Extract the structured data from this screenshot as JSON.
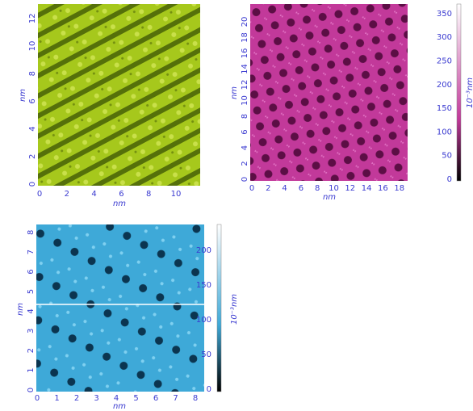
{
  "panels": [
    {
      "x_label": "nm",
      "y_label": "nm",
      "x_ticks": [
        "0",
        "2",
        "4",
        "6",
        "8",
        "10"
      ],
      "y_ticks": [
        "0",
        "2",
        "4",
        "6",
        "8",
        "10",
        "12"
      ]
    },
    {
      "x_label": "nm",
      "y_label": "nm",
      "x_ticks": [
        "0",
        "2",
        "4",
        "6",
        "8",
        "10",
        "12",
        "14",
        "16",
        "18"
      ],
      "y_ticks": [
        "0",
        "2",
        "4",
        "6",
        "8",
        "10",
        "12",
        "14",
        "16",
        "18",
        "20"
      ],
      "colorbar": {
        "label": "10⁻³nm",
        "ticks": [
          "0",
          "50",
          "100",
          "150",
          "200",
          "250",
          "300",
          "350"
        ]
      }
    },
    {
      "x_label": "nm",
      "y_label": "nm",
      "x_ticks": [
        "0",
        "1",
        "2",
        "3",
        "4",
        "5",
        "6",
        "7",
        "8"
      ],
      "y_ticks": [
        "0",
        "1",
        "2",
        "3",
        "4",
        "5",
        "6",
        "7",
        "8"
      ],
      "colorbar": {
        "label": "10⁻³nm",
        "ticks": [
          "0",
          "50",
          "100",
          "150",
          "200"
        ]
      }
    }
  ]
}
